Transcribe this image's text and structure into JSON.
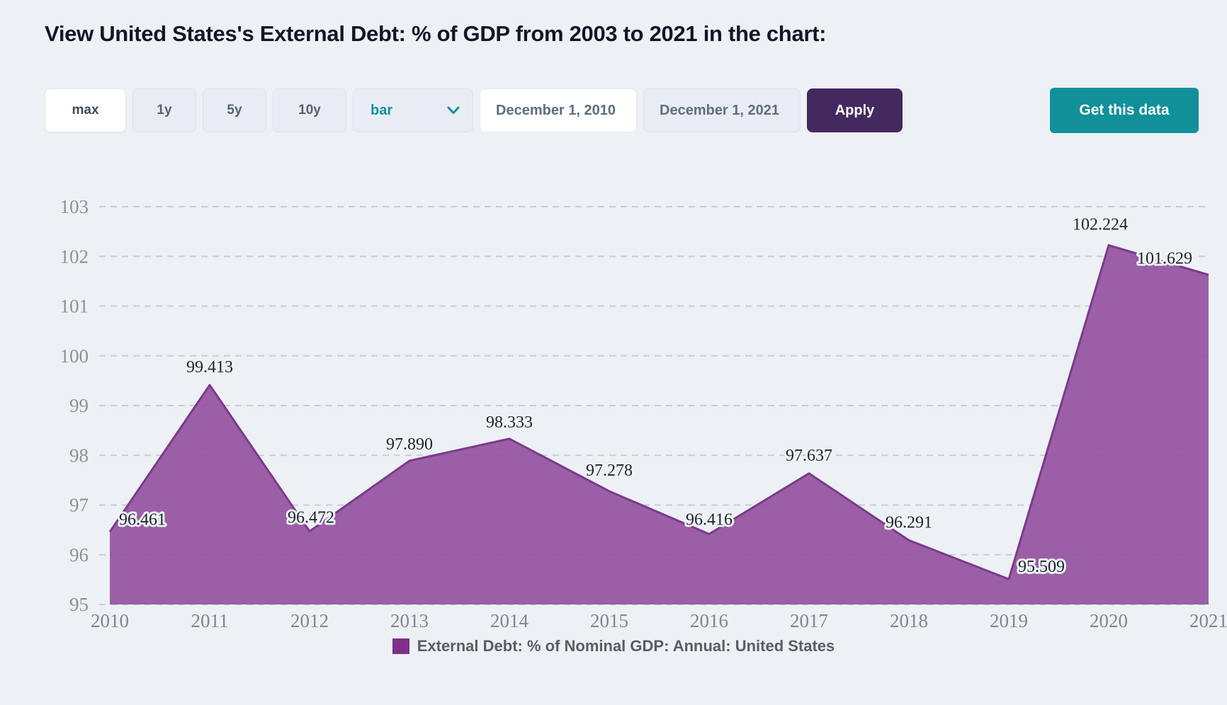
{
  "page": {
    "title": "View United States's External Debt: % of GDP from 2003 to 2021 in the chart:"
  },
  "toolbar": {
    "range_buttons": [
      {
        "label": "max",
        "active": true
      },
      {
        "label": "1y",
        "active": false
      },
      {
        "label": "5y",
        "active": false
      },
      {
        "label": "10y",
        "active": false
      }
    ],
    "chart_type_select": {
      "value": "bar"
    },
    "start_date": "December 1, 2010",
    "end_date": "December 1, 2021",
    "apply_label": "Apply",
    "get_data_label": "Get this data"
  },
  "chart_data": {
    "type": "area",
    "x": [
      2010,
      2011,
      2012,
      2013,
      2014,
      2015,
      2016,
      2017,
      2018,
      2019,
      2020,
      2021
    ],
    "series": [
      {
        "name": "External Debt: % of Nominal GDP: Annual: United States",
        "values": [
          96.461,
          99.413,
          96.472,
          97.89,
          98.333,
          97.278,
          96.416,
          97.637,
          96.291,
          95.509,
          102.224,
          101.629
        ]
      }
    ],
    "point_labels": [
      "96.461",
      "99.413",
      "96.472",
      "97.890",
      "98.333",
      "97.278",
      "96.416",
      "97.637",
      "96.291",
      "95.509",
      "102.224",
      "101.629"
    ],
    "ylim": [
      95,
      103
    ],
    "yticks": [
      95,
      96,
      97,
      98,
      99,
      100,
      101,
      102,
      103
    ],
    "grid": "horizontal-dashed",
    "legend_position": "bottom",
    "colors": {
      "area_fill": "#94519f",
      "area_stroke": "#7b3b89",
      "legend_swatch": "#7d3189",
      "grid_line": "#c7cdd5",
      "accent_teal": "#11909a",
      "accent_purple_button": "#44295e",
      "background": "#edf1f6"
    }
  },
  "legend": {
    "label": "External Debt: % of Nominal GDP: Annual: United States"
  }
}
